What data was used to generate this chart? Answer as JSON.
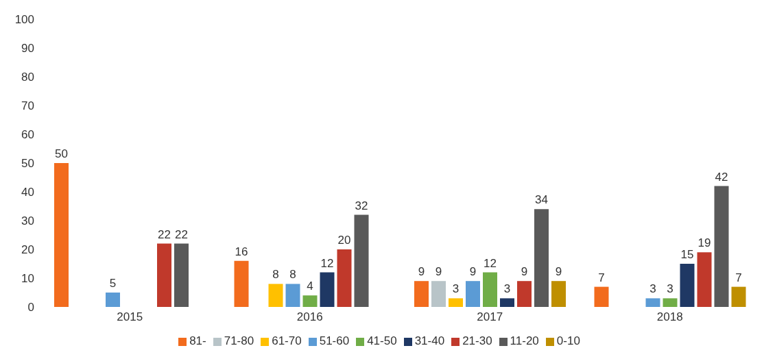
{
  "chart_data": {
    "type": "bar",
    "categories": [
      "2015",
      "2016",
      "2017",
      "2018"
    ],
    "ylim": [
      0,
      100
    ],
    "yticks": [
      0,
      10,
      20,
      30,
      40,
      50,
      60,
      70,
      80,
      90,
      100
    ],
    "grid": false,
    "legend": "bottom",
    "series": [
      {
        "name": "81-",
        "color": "#f26b1d",
        "values": [
          50,
          16,
          9,
          7
        ],
        "value_labels": [
          "50",
          "16",
          "9",
          "7"
        ]
      },
      {
        "name": "71-80",
        "color": "#b8c4c8",
        "values": [
          0,
          0,
          9,
          0
        ],
        "value_labels": [
          null,
          null,
          "9",
          null
        ]
      },
      {
        "name": "61-70",
        "color": "#ffc000",
        "values": [
          0,
          8,
          3,
          0
        ],
        "value_labels": [
          null,
          "8",
          "3",
          null
        ]
      },
      {
        "name": "51-60",
        "color": "#5b9bd5",
        "values": [
          5,
          8,
          9,
          3
        ],
        "value_labels": [
          "5",
          "8",
          "9",
          "3"
        ]
      },
      {
        "name": "41-50",
        "color": "#70ad47",
        "values": [
          0,
          4,
          12,
          3
        ],
        "value_labels": [
          null,
          "4",
          "12",
          "3"
        ]
      },
      {
        "name": "31-40",
        "color": "#1f3864",
        "values": [
          0,
          12,
          3,
          15
        ],
        "value_labels": [
          null,
          "12",
          "3",
          "15"
        ]
      },
      {
        "name": "21-30",
        "color": "#c0392b",
        "values": [
          22,
          20,
          9,
          19
        ],
        "value_labels": [
          "22",
          "20",
          "9",
          "19"
        ]
      },
      {
        "name": "11-20",
        "color": "#595959",
        "values": [
          22,
          32,
          34,
          42
        ],
        "value_labels": [
          "22",
          "32",
          "34",
          "42"
        ]
      },
      {
        "name": "0-10",
        "color": "#bf8f00",
        "values": [
          0,
          0,
          9,
          7
        ],
        "value_labels": [
          null,
          null,
          "9",
          "7"
        ]
      }
    ]
  }
}
